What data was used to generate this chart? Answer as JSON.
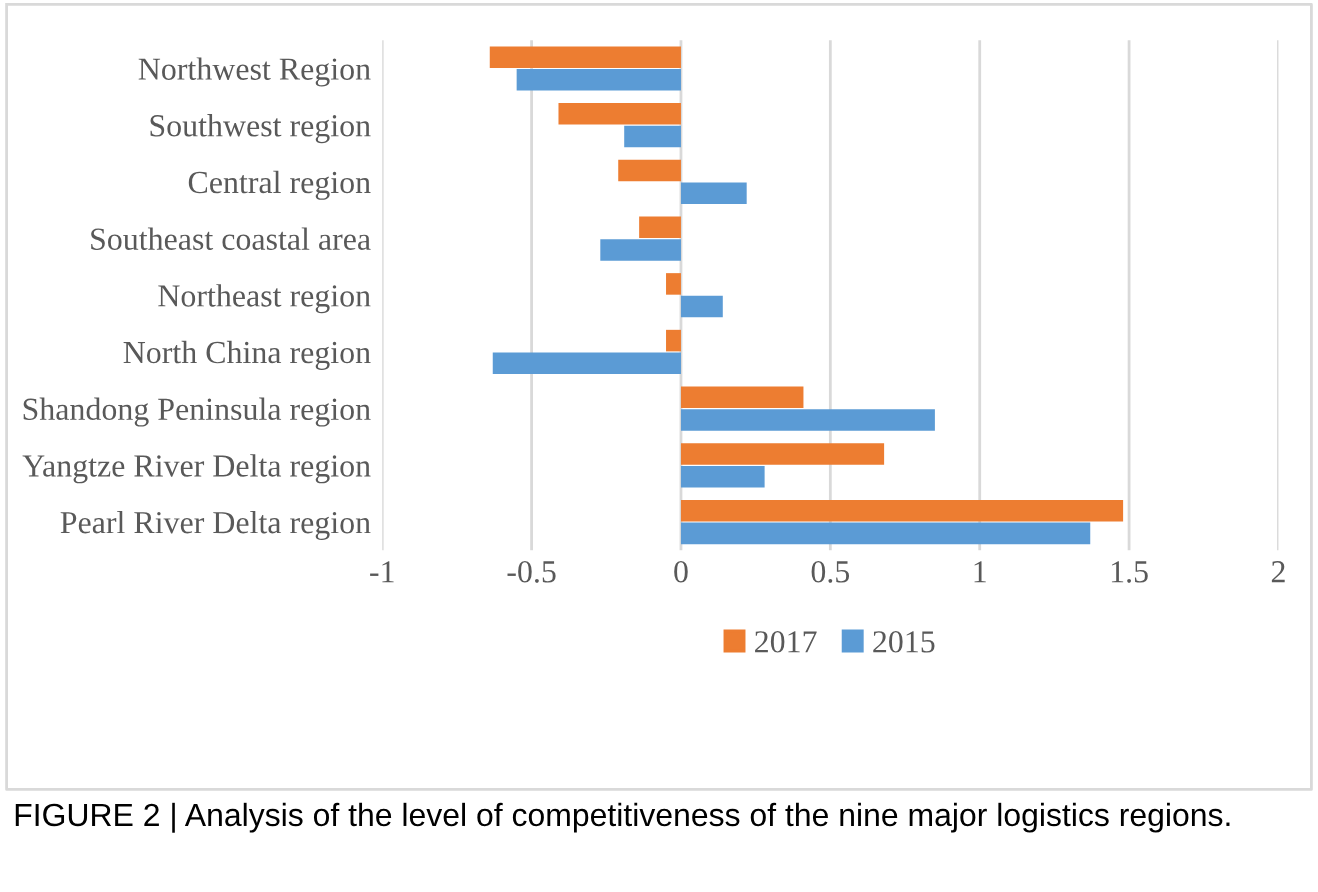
{
  "chart_data": {
    "type": "bar",
    "orientation": "horizontal",
    "categories": [
      "Northwest Region",
      "Southwest region",
      "Central region",
      "Southeast coastal area",
      "Northeast region",
      "North China region",
      "Shandong Peninsula region",
      "Yangtze River Delta region",
      "Pearl River Delta region"
    ],
    "series": [
      {
        "name": "2017",
        "color": "#ed7d31",
        "values": [
          -0.64,
          -0.41,
          -0.21,
          -0.14,
          -0.05,
          -0.05,
          0.41,
          0.68,
          1.48
        ]
      },
      {
        "name": "2015",
        "color": "#5b9bd5",
        "values": [
          -0.55,
          -0.19,
          0.22,
          -0.27,
          0.14,
          -0.63,
          0.85,
          0.28,
          1.37
        ]
      }
    ],
    "xlim": [
      -1,
      2
    ],
    "xticks": [
      -1,
      -0.5,
      0,
      0.5,
      1,
      1.5,
      2
    ],
    "grid": "x",
    "legend": "bottom",
    "annotations": [
      "FIGURE 2 | Analysis of the level of competitiveness of the nine major logistics regions."
    ]
  }
}
